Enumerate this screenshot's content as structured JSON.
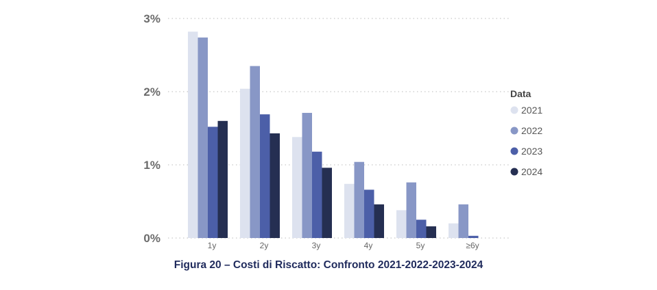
{
  "chart_data": {
    "type": "bar",
    "categories": [
      "1y",
      "2y",
      "3y",
      "4y",
      "5y",
      "≥6y"
    ],
    "series": [
      {
        "name": "2021",
        "color": "#dde2ef",
        "values": [
          2.82,
          2.04,
          1.38,
          0.74,
          0.38,
          0.2
        ]
      },
      {
        "name": "2022",
        "color": "#8897c6",
        "values": [
          2.74,
          2.35,
          1.71,
          1.04,
          0.76,
          0.46
        ]
      },
      {
        "name": "2023",
        "color": "#4c5fa8",
        "values": [
          1.52,
          1.69,
          1.18,
          0.66,
          0.25,
          0.03
        ]
      },
      {
        "name": "2024",
        "color": "#252f52",
        "values": [
          1.6,
          1.43,
          0.96,
          0.46,
          0.16,
          0.0
        ]
      }
    ],
    "ylim": [
      0,
      3
    ],
    "yticks": [
      {
        "value": 0,
        "label": "0%"
      },
      {
        "value": 1,
        "label": "1%"
      },
      {
        "value": 2,
        "label": "2%"
      },
      {
        "value": 3,
        "label": "3%"
      }
    ],
    "grid": true,
    "legend": {
      "title": "Data",
      "position": "right"
    },
    "caption": "Figura 20 – Costi di Riscatto: Confronto 2021-2022-2023-2024"
  }
}
